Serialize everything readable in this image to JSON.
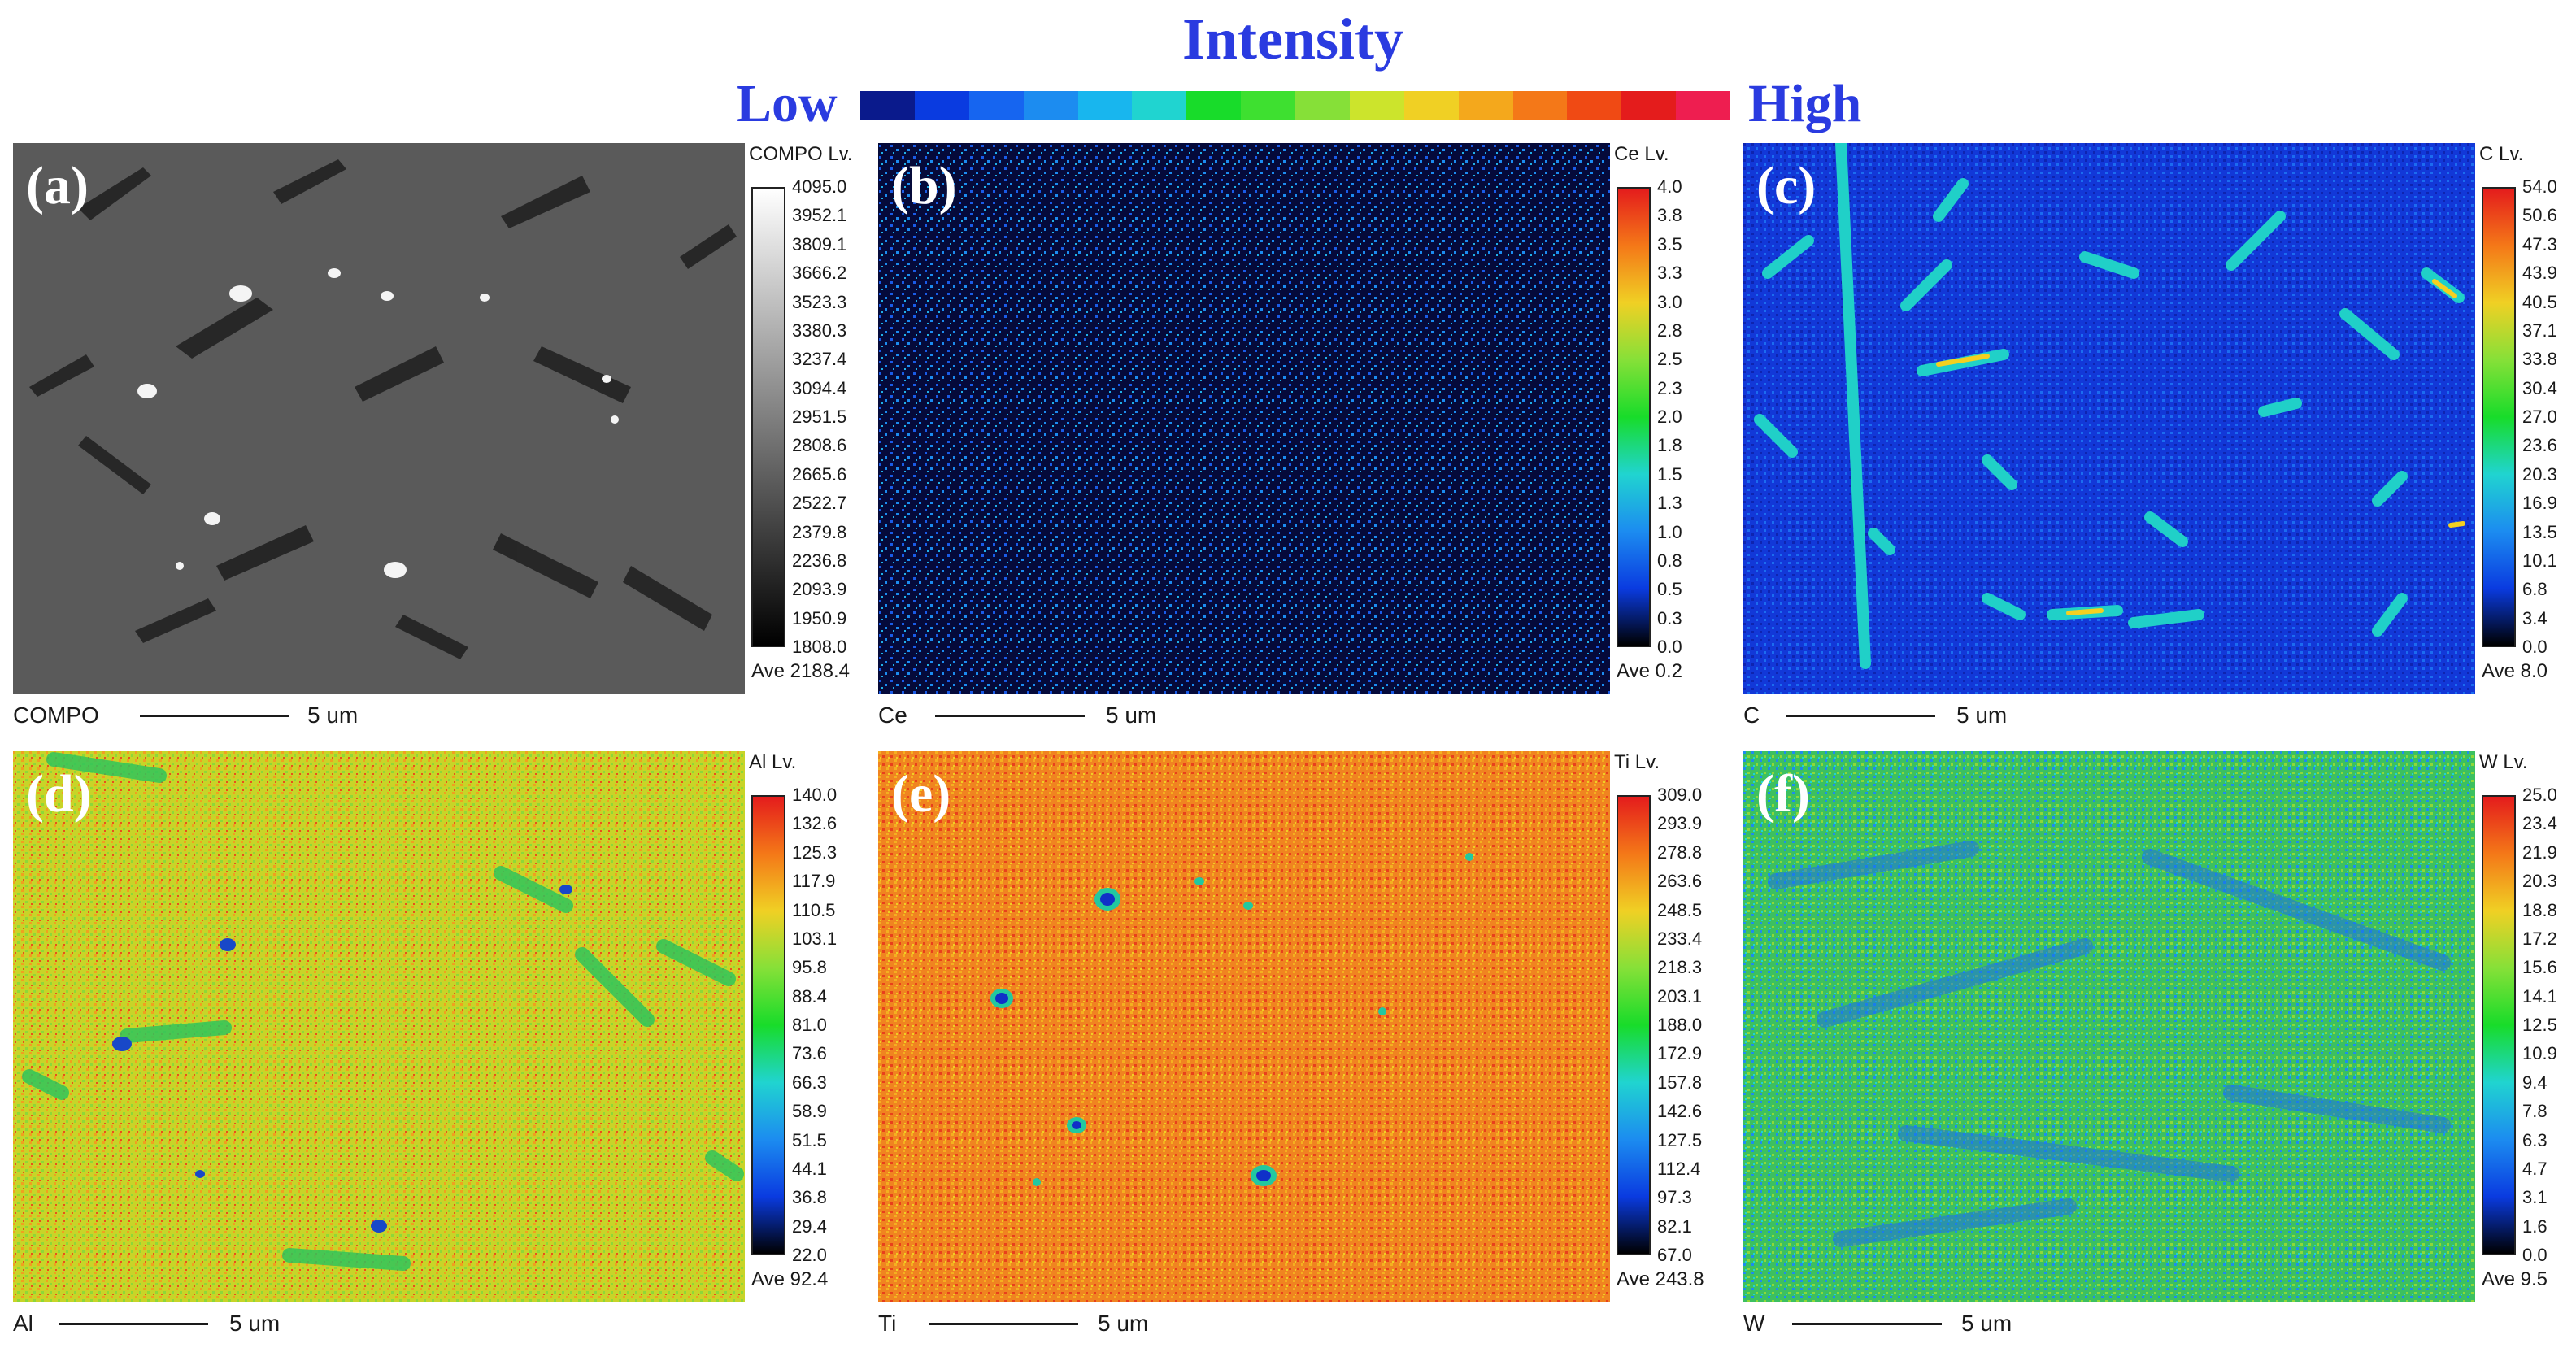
{
  "header": {
    "title": "Intensity",
    "low_label": "Low",
    "high_label": "High",
    "label_color": "#2a3be0",
    "bar_colors": [
      "#0a1a8c",
      "#0a3be0",
      "#1665f0",
      "#1c8cf0",
      "#18b6ee",
      "#20d4d0",
      "#18dc2a",
      "#3ee030",
      "#86e038",
      "#cce42c",
      "#f0d024",
      "#f4a81c",
      "#f47818",
      "#f04a14",
      "#e41c1c",
      "#ee1e50"
    ]
  },
  "panels": [
    {
      "letter": "(a)",
      "element": "COMPO",
      "lv_label": "COMPO  Lv.",
      "ave": "Ave 2188.4",
      "scale_label": "COMPO",
      "scale_value": "5 um",
      "ticks": [
        "4095.0",
        "3952.1",
        "3809.1",
        "3666.2",
        "3523.3",
        "3380.3",
        "3237.4",
        "3094.4",
        "2951.5",
        "2808.6",
        "2665.6",
        "2522.7",
        "2379.8",
        "2236.8",
        "2093.9",
        "1950.9",
        "1808.0"
      ],
      "colormap": "gray",
      "base_color": "#5a5a5a"
    },
    {
      "letter": "(b)",
      "element": "Ce",
      "lv_label": "Ce  Lv.",
      "ave": "Ave 0.2",
      "scale_label": "Ce",
      "scale_value": "5 um",
      "ticks": [
        "4.0",
        "3.8",
        "3.5",
        "3.3",
        "3.0",
        "2.8",
        "2.5",
        "2.3",
        "2.0",
        "1.8",
        "1.5",
        "1.3",
        "1.0",
        "0.8",
        "0.5",
        "0.3",
        "0.0"
      ],
      "colormap": "jet",
      "base_color": "#050a3a"
    },
    {
      "letter": "(c)",
      "element": "C",
      "lv_label": "C  Lv.",
      "ave": "Ave 8.0",
      "scale_label": "C",
      "scale_value": "5 um",
      "ticks": [
        "54.0",
        "50.6",
        "47.3",
        "43.9",
        "40.5",
        "37.1",
        "33.8",
        "30.4",
        "27.0",
        "23.6",
        "20.3",
        "16.9",
        "13.5",
        "10.1",
        "6.8",
        "3.4",
        "0.0"
      ],
      "colormap": "jet",
      "base_color": "#1238d8"
    },
    {
      "letter": "(d)",
      "element": "Al",
      "lv_label": "Al  Lv.",
      "ave": "Ave 92.4",
      "scale_label": "Al",
      "scale_value": "5 um",
      "ticks": [
        "140.0",
        "132.6",
        "125.3",
        "117.9",
        "110.5",
        "103.1",
        "95.8",
        "88.4",
        "81.0",
        "73.6",
        "66.3",
        "58.9",
        "51.5",
        "44.1",
        "36.8",
        "29.4",
        "22.0"
      ],
      "colormap": "jet",
      "base_color": "#c8d428"
    },
    {
      "letter": "(e)",
      "element": "Ti",
      "lv_label": "Ti  Lv.",
      "ave": "Ave 243.8",
      "scale_label": "Ti",
      "scale_value": "5 um",
      "ticks": [
        "309.0",
        "293.9",
        "278.8",
        "263.6",
        "248.5",
        "233.4",
        "218.3",
        "203.1",
        "188.0",
        "172.9",
        "157.8",
        "142.6",
        "127.5",
        "112.4",
        "97.3",
        "82.1",
        "67.0"
      ],
      "colormap": "jet",
      "base_color": "#f08420"
    },
    {
      "letter": "(f)",
      "element": "W",
      "lv_label": "W  Lv.",
      "ave": "Ave 9.5",
      "scale_label": "W",
      "scale_value": "5 um",
      "ticks": [
        "25.0",
        "23.4",
        "21.9",
        "20.3",
        "18.8",
        "17.2",
        "15.6",
        "14.1",
        "12.5",
        "10.9",
        "9.4",
        "7.8",
        "6.3",
        "4.7",
        "3.1",
        "1.6",
        "0.0"
      ],
      "colormap": "jet",
      "base_color": "#3cc060"
    }
  ]
}
